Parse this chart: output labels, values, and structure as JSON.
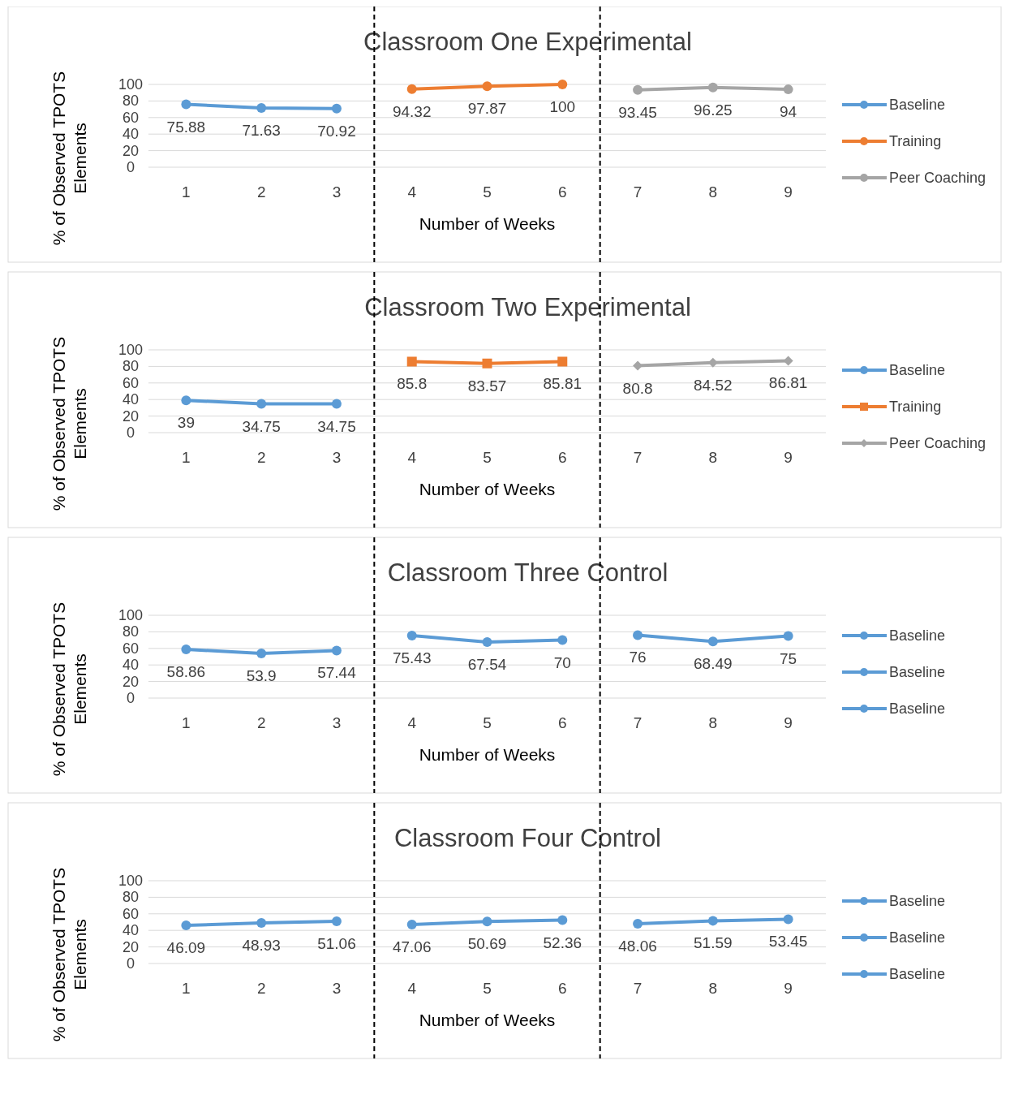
{
  "chart_data": [
    {
      "type": "line",
      "title": "Classroom One Experimental",
      "xlabel": "Number of Weeks",
      "ylabel": "% of Observed TPOTS Elements",
      "xlim": [
        0.5,
        9.5
      ],
      "xticks": [
        1,
        2,
        3,
        4,
        5,
        6,
        7,
        8,
        9
      ],
      "ylim": [
        0,
        100
      ],
      "yticks": [
        0,
        20,
        40,
        60,
        80,
        100
      ],
      "grid": "y",
      "legend": "right",
      "data_labels": true,
      "marker": "circle",
      "series": [
        {
          "name": "Baseline",
          "color": "#5b9bd5",
          "x": [
            1,
            2,
            3
          ],
          "values": [
            75.88,
            71.63,
            70.92
          ]
        },
        {
          "name": "Training",
          "color": "#ed7d31",
          "x": [
            4,
            5,
            6
          ],
          "values": [
            94.32,
            97.87,
            100
          ]
        },
        {
          "name": "Peer Coaching",
          "color": "#a5a5a5",
          "x": [
            7,
            8,
            9
          ],
          "values": [
            93.45,
            96.25,
            94
          ]
        }
      ],
      "ref_lines": [
        {
          "axis": "x",
          "value": 3.5,
          "color": "#000000",
          "line_style": "dashed"
        },
        {
          "axis": "x",
          "value": 6.5,
          "color": "#000000",
          "line_style": "dashed"
        }
      ]
    },
    {
      "type": "line",
      "title": "Classroom Two Experimental",
      "xlabel": "Number of Weeks",
      "ylabel": "% of Observed TPOTS Elements",
      "xlim": [
        0.5,
        9.5
      ],
      "xticks": [
        1,
        2,
        3,
        4,
        5,
        6,
        7,
        8,
        9
      ],
      "ylim": [
        0,
        100
      ],
      "yticks": [
        0,
        20,
        40,
        60,
        80,
        100
      ],
      "grid": "y",
      "legend": "right",
      "data_labels": true,
      "series": [
        {
          "name": "Baseline",
          "color": "#5b9bd5",
          "marker": "circle",
          "x": [
            1,
            2,
            3
          ],
          "values": [
            39,
            34.75,
            34.75
          ]
        },
        {
          "name": "Training",
          "color": "#ed7d31",
          "marker": "square",
          "x": [
            4,
            5,
            6
          ],
          "values": [
            85.8,
            83.57,
            85.81
          ]
        },
        {
          "name": "Peer Coaching",
          "color": "#a5a5a5",
          "marker": "diamond",
          "x": [
            7,
            8,
            9
          ],
          "values": [
            80.8,
            84.52,
            86.81
          ]
        }
      ],
      "ref_lines": [
        {
          "axis": "x",
          "value": 3.5,
          "color": "#000000",
          "line_style": "dashed"
        },
        {
          "axis": "x",
          "value": 6.5,
          "color": "#000000",
          "line_style": "dashed"
        }
      ]
    },
    {
      "type": "line",
      "title": "Classroom Three Control",
      "xlabel": "Number of Weeks",
      "ylabel": "% of Observed TPOTS Elements",
      "xlim": [
        0.5,
        9.5
      ],
      "xticks": [
        1,
        2,
        3,
        4,
        5,
        6,
        7,
        8,
        9
      ],
      "ylim": [
        0,
        100
      ],
      "yticks": [
        0,
        20,
        40,
        60,
        80,
        100
      ],
      "grid": "y",
      "legend": "right",
      "data_labels": true,
      "marker": "circle",
      "series": [
        {
          "name": "Baseline",
          "color": "#5b9bd5",
          "x": [
            1,
            2,
            3
          ],
          "values": [
            58.86,
            53.9,
            57.44
          ]
        },
        {
          "name": "Baseline",
          "color": "#5b9bd5",
          "x": [
            4,
            5,
            6
          ],
          "values": [
            75.43,
            67.54,
            70
          ]
        },
        {
          "name": "Baseline",
          "color": "#5b9bd5",
          "x": [
            7,
            8,
            9
          ],
          "values": [
            76,
            68.49,
            75
          ]
        }
      ],
      "ref_lines": [
        {
          "axis": "x",
          "value": 3.5,
          "color": "#000000",
          "line_style": "dashed"
        },
        {
          "axis": "x",
          "value": 6.5,
          "color": "#000000",
          "line_style": "dashed"
        }
      ]
    },
    {
      "type": "line",
      "title": "Classroom Four Control",
      "xlabel": "Number of Weeks",
      "ylabel": "% of Observed TPOTS Elements",
      "xlim": [
        0.5,
        9.5
      ],
      "xticks": [
        1,
        2,
        3,
        4,
        5,
        6,
        7,
        8,
        9
      ],
      "ylim": [
        0,
        100
      ],
      "yticks": [
        0,
        20,
        40,
        60,
        80,
        100
      ],
      "grid": "y",
      "legend": "right",
      "data_labels": true,
      "marker": "circle",
      "series": [
        {
          "name": "Baseline",
          "color": "#5b9bd5",
          "x": [
            1,
            2,
            3
          ],
          "values": [
            46.09,
            48.93,
            51.06
          ]
        },
        {
          "name": "Baseline",
          "color": "#5b9bd5",
          "x": [
            4,
            5,
            6
          ],
          "values": [
            47.06,
            50.69,
            52.36
          ]
        },
        {
          "name": "Baseline",
          "color": "#5b9bd5",
          "x": [
            7,
            8,
            9
          ],
          "values": [
            48.06,
            51.59,
            53.45
          ]
        }
      ],
      "ref_lines": [
        {
          "axis": "x",
          "value": 3.5,
          "color": "#000000",
          "line_style": "dashed"
        },
        {
          "axis": "x",
          "value": 6.5,
          "color": "#000000",
          "line_style": "dashed"
        }
      ]
    }
  ]
}
